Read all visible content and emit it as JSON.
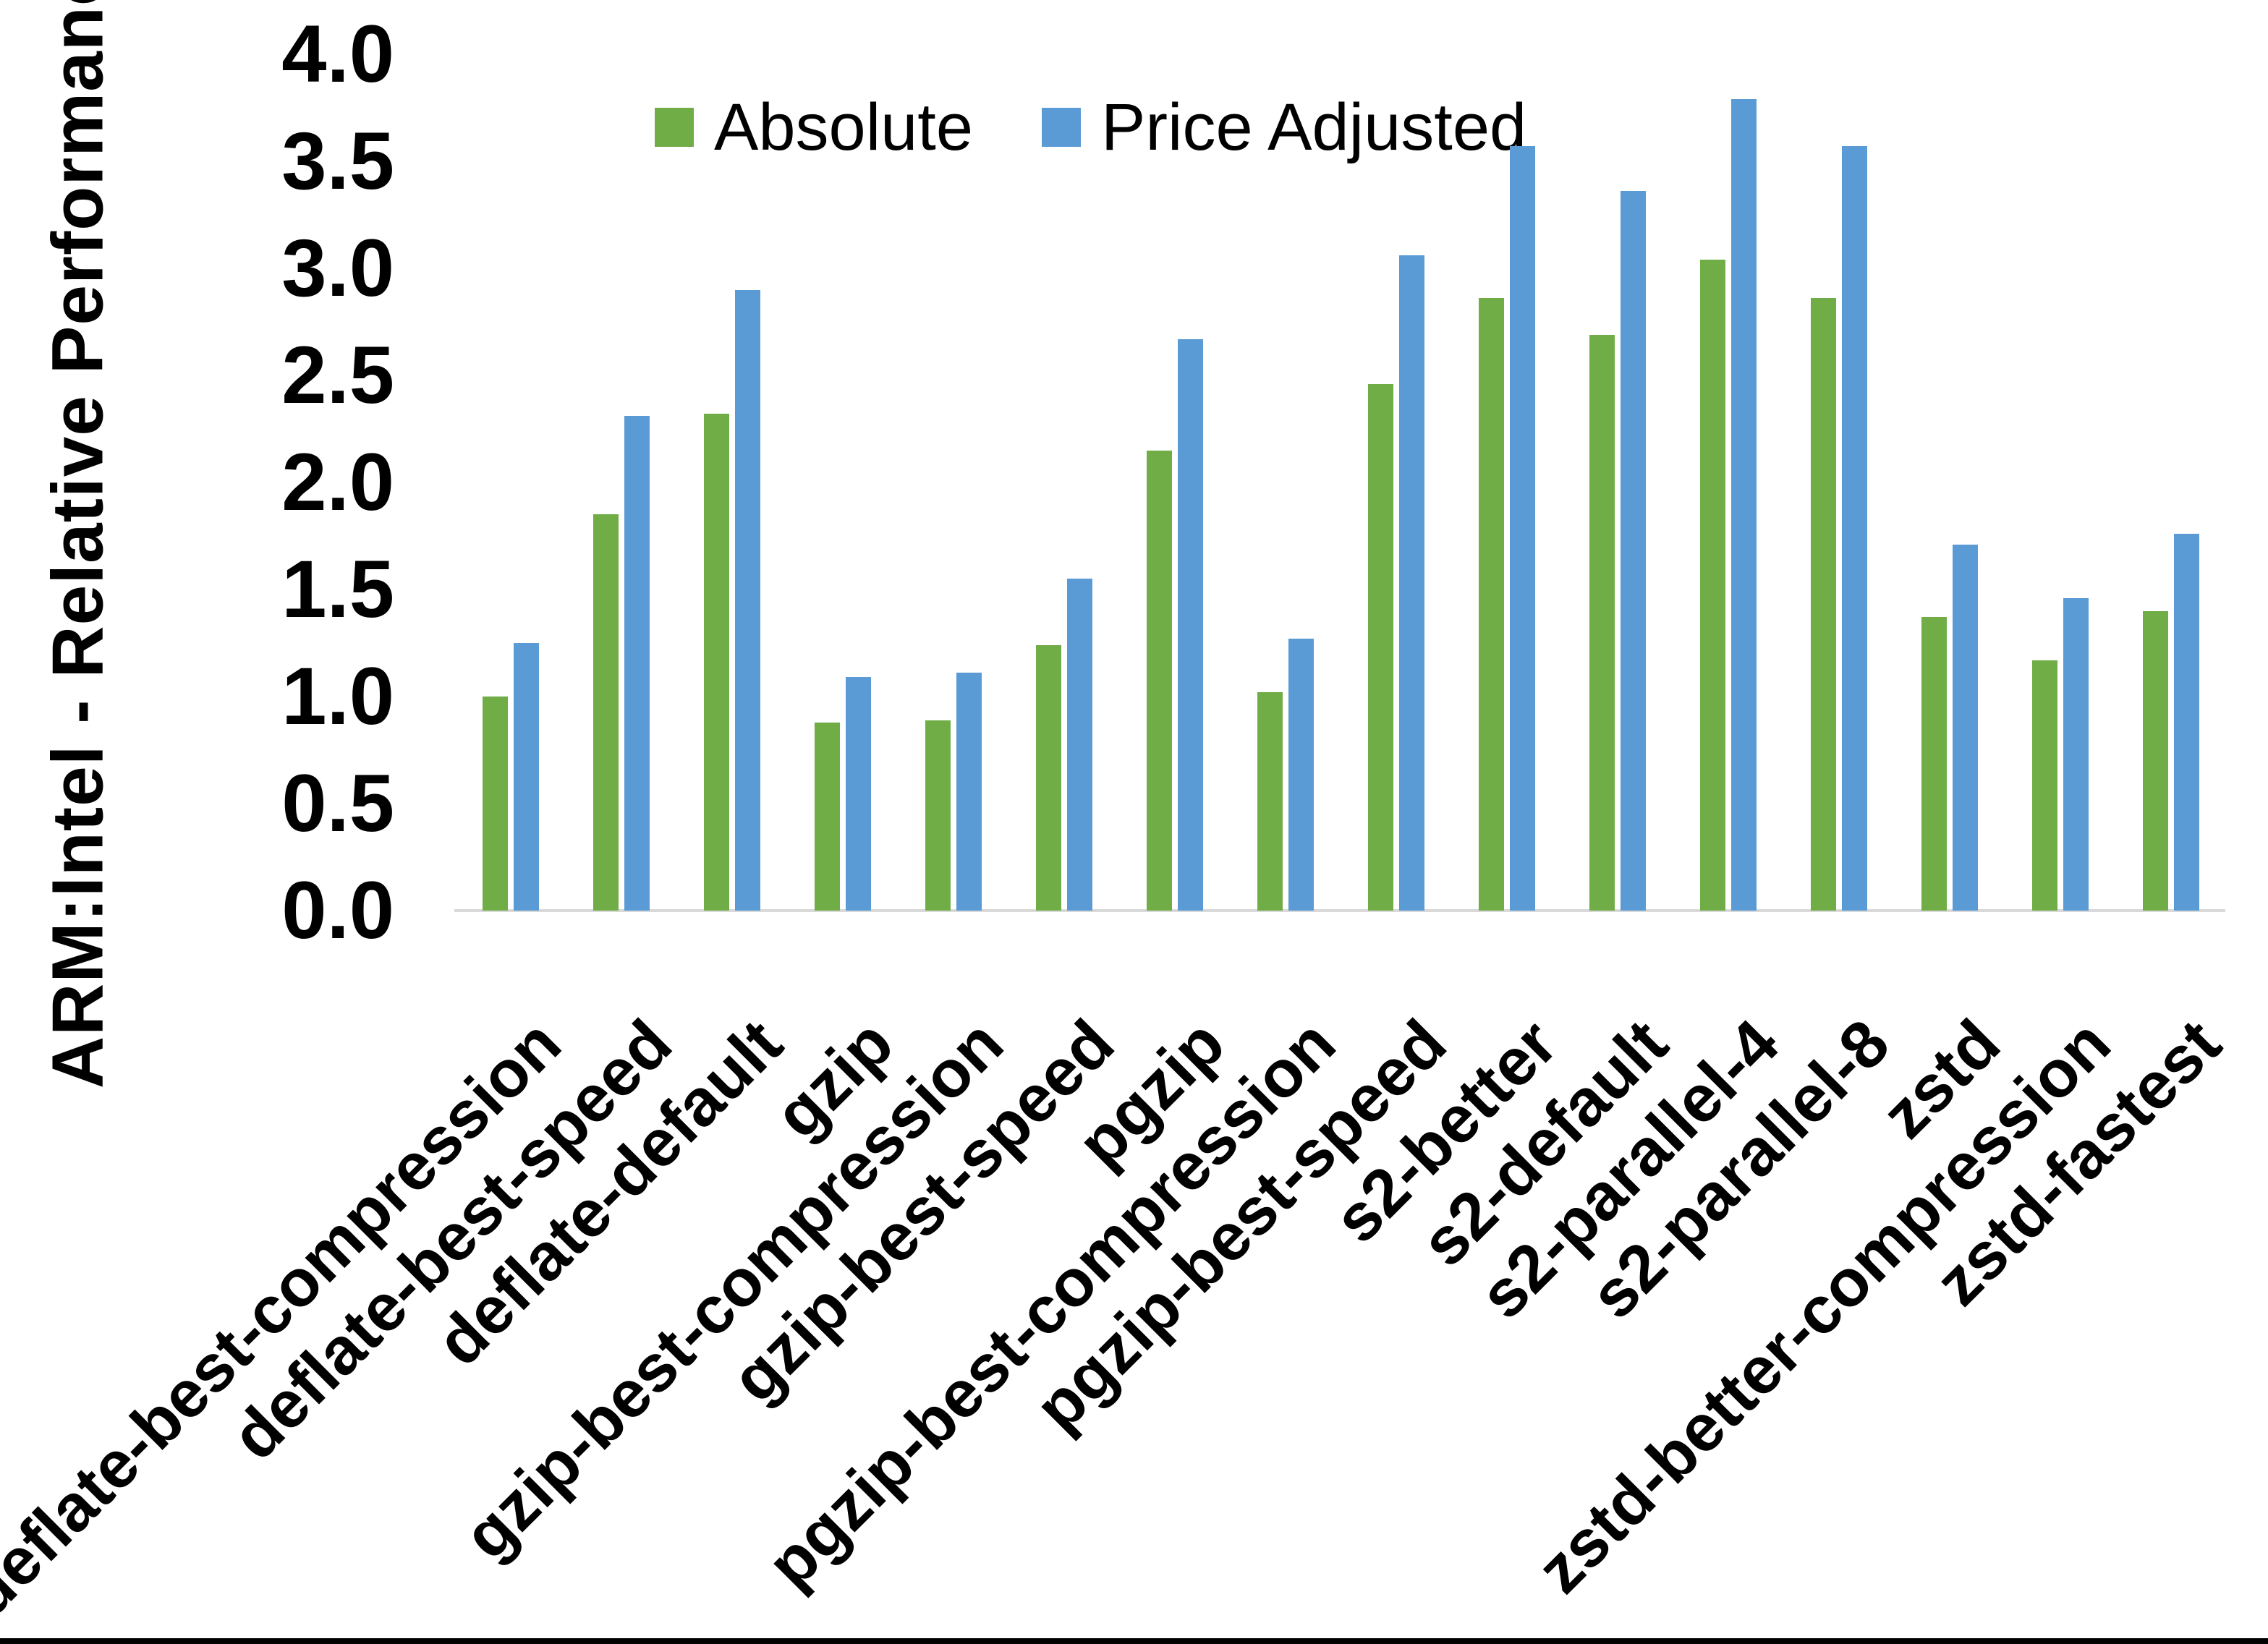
{
  "chart_data": {
    "type": "bar",
    "title": "",
    "xlabel": "",
    "ylabel": "ARM:Intel - Relative Performance",
    "ylim": [
      0.0,
      4.0
    ],
    "ytick_step": 0.5,
    "yticks": [
      "0.0",
      "0.5",
      "1.0",
      "1.5",
      "2.0",
      "2.5",
      "3.0",
      "3.5",
      "4.0"
    ],
    "grid": false,
    "legend_position": "top-center",
    "categories": [
      "deflate-best-compression",
      "deflate-best-speed",
      "deflate-default",
      "gzip",
      "gzip-best-compression",
      "gzip-best-speed",
      "pgzip",
      "pgzip-best-compression",
      "pgzip-best-speed",
      "s2-better",
      "s2-default",
      "s2-parallel-4",
      "s2-parallel-8",
      "zstd",
      "zstd-better-compression",
      "zstd-fastest"
    ],
    "series": [
      {
        "name": "Absolute",
        "color": "#70AD47",
        "values": [
          1.0,
          1.85,
          2.32,
          0.88,
          0.89,
          1.24,
          2.15,
          1.02,
          2.46,
          2.86,
          2.69,
          3.04,
          2.86,
          1.37,
          1.17,
          1.4
        ]
      },
      {
        "name": "Price Adjusted",
        "color": "#5B9BD5",
        "values": [
          1.25,
          2.31,
          2.9,
          1.09,
          1.11,
          1.55,
          2.67,
          1.27,
          3.06,
          3.57,
          3.36,
          3.79,
          3.57,
          1.71,
          1.46,
          1.76
        ]
      }
    ]
  },
  "colors": {
    "background": "#FFFFFF",
    "axis_line": "#D9D9D9",
    "text": "#000000",
    "bottom_border": "#000000"
  }
}
